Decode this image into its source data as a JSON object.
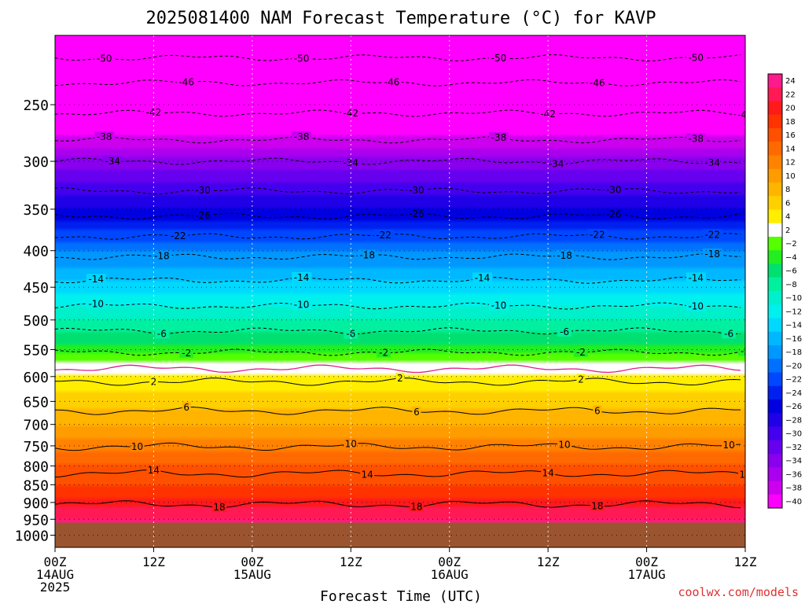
{
  "chart_data": {
    "type": "heatmap",
    "title": "2025081400 NAM Forecast Temperature (°C) for KAVP",
    "xlabel": "Forecast Time (UTC)",
    "ylabel": "",
    "credit": "coolwx.com/models",
    "y_scale": "log",
    "ylim": [
      1040,
      200
    ],
    "x_range_hours": [
      0,
      84
    ],
    "y_ticks": [
      250,
      300,
      350,
      400,
      450,
      500,
      550,
      600,
      650,
      700,
      750,
      800,
      850,
      900,
      950,
      1000
    ],
    "x_ticks": [
      {
        "hour": 0,
        "label": "00Z",
        "date": "14AUG",
        "year": "2025"
      },
      {
        "hour": 12,
        "label": "12Z",
        "date": "",
        "year": ""
      },
      {
        "hour": 24,
        "label": "00Z",
        "date": "15AUG",
        "year": ""
      },
      {
        "hour": 36,
        "label": "12Z",
        "date": "",
        "year": ""
      },
      {
        "hour": 48,
        "label": "00Z",
        "date": "16AUG",
        "year": ""
      },
      {
        "hour": 60,
        "label": "12Z",
        "date": "",
        "year": ""
      },
      {
        "hour": 72,
        "label": "00Z",
        "date": "17AUG",
        "year": ""
      },
      {
        "hour": 84,
        "label": "12Z",
        "date": "",
        "year": ""
      }
    ],
    "surface_pressure_hpa": 960,
    "colorbar": {
      "levels": [
        24,
        22,
        20,
        18,
        16,
        14,
        12,
        10,
        8,
        6,
        4,
        2,
        -2,
        -4,
        -6,
        -8,
        -10,
        -12,
        -14,
        -16,
        -18,
        -20,
        -22,
        -24,
        -26,
        -28,
        -30,
        -32,
        -34,
        -36,
        -38,
        -40
      ],
      "labels": [
        "24",
        "22",
        "20",
        "18",
        "16",
        "14",
        "12",
        "10",
        "8",
        "6",
        "4",
        "2",
        "−2",
        "−4",
        "−6",
        "−8",
        "−10",
        "−12",
        "−14",
        "−16",
        "−18",
        "−20",
        "−22",
        "−24",
        "−26",
        "−28",
        "−30",
        "−32",
        "−34",
        "−36",
        "−38",
        "−40"
      ],
      "colors": [
        "#ff1a8c",
        "#ff1a55",
        "#ff1a1a",
        "#ff3300",
        "#ff5000",
        "#ff6a00",
        "#ff8200",
        "#ff9c00",
        "#ffb400",
        "#ffd000",
        "#ffee00",
        "#ffffff",
        "#55ff00",
        "#22ee22",
        "#00e070",
        "#00f0a0",
        "#00f0cc",
        "#00f0ee",
        "#00d8ff",
        "#00b8ff",
        "#0098ff",
        "#0070ff",
        "#0048ff",
        "#0020f0",
        "#0000e0",
        "#2000e6",
        "#4400ee",
        "#6600ee",
        "#8800ee",
        "#aa00ee",
        "#cc00ee",
        "#ff00ff"
      ]
    },
    "profile": [
      {
        "p": 200,
        "t": -55
      },
      {
        "p": 250,
        "t": -44
      },
      {
        "p": 300,
        "t": -33
      },
      {
        "p": 350,
        "t": -26
      },
      {
        "p": 400,
        "t": -18
      },
      {
        "p": 450,
        "t": -13
      },
      {
        "p": 500,
        "t": -8
      },
      {
        "p": 550,
        "t": -3
      },
      {
        "p": 570,
        "t": 0
      },
      {
        "p": 600,
        "t": 2
      },
      {
        "p": 650,
        "t": 5
      },
      {
        "p": 700,
        "t": 8
      },
      {
        "p": 750,
        "t": 11
      },
      {
        "p": 800,
        "t": 14
      },
      {
        "p": 850,
        "t": 16
      },
      {
        "p": 900,
        "t": 19
      },
      {
        "p": 960,
        "t": 23
      }
    ],
    "contours": [
      {
        "label": "-50",
        "p": 215,
        "style": "dashed",
        "labels_at": [
          6,
          30,
          54,
          78
        ]
      },
      {
        "label": "-46",
        "p": 233,
        "style": "dashed",
        "labels_at": [
          16,
          41,
          66,
          90
        ]
      },
      {
        "label": "-42",
        "p": 257,
        "style": "dashed",
        "labels_at": [
          12,
          36,
          60,
          84
        ]
      },
      {
        "label": "-38",
        "p": 280,
        "style": "dashed",
        "labels_at": [
          6,
          30,
          54,
          78
        ]
      },
      {
        "label": "-34",
        "p": 300,
        "style": "dashed",
        "labels_at": [
          7,
          36,
          61,
          80
        ]
      },
      {
        "label": "-30",
        "p": 330,
        "style": "dashed",
        "labels_at": [
          18,
          44,
          68,
          88
        ]
      },
      {
        "label": "-26",
        "p": 358,
        "style": "dashed",
        "labels_at": [
          18,
          44,
          68,
          88
        ]
      },
      {
        "label": "-22",
        "p": 382,
        "style": "dashed",
        "labels_at": [
          15,
          40,
          66,
          80
        ]
      },
      {
        "label": "-18",
        "p": 408,
        "style": "dashed",
        "labels_at": [
          13,
          38,
          62,
          80
        ]
      },
      {
        "label": "-14",
        "p": 440,
        "style": "dashed",
        "labels_at": [
          5,
          30,
          52,
          78
        ]
      },
      {
        "label": "-10",
        "p": 478,
        "style": "dashed",
        "labels_at": [
          5,
          30,
          54,
          78
        ]
      },
      {
        "label": "-6",
        "p": 518,
        "style": "dashed",
        "labels_at": [
          13,
          36,
          62,
          82
        ]
      },
      {
        "label": "-2",
        "p": 555,
        "style": "dashed",
        "labels_at": [
          16,
          40,
          64,
          84
        ]
      },
      {
        "label": "2",
        "p": 610,
        "style": "solid",
        "labels_at": [
          12,
          42,
          64,
          86
        ]
      },
      {
        "label": "6",
        "p": 670,
        "style": "solid",
        "labels_at": [
          16,
          44,
          66,
          86
        ]
      },
      {
        "label": "10",
        "p": 752,
        "style": "solid",
        "labels_at": [
          10,
          36,
          62,
          82
        ]
      },
      {
        "label": "14",
        "p": 820,
        "style": "solid",
        "labels_at": [
          12,
          38,
          60,
          84
        ]
      },
      {
        "label": "18",
        "p": 905,
        "style": "solid",
        "labels_at": [
          20,
          44,
          66,
          86
        ]
      }
    ]
  }
}
